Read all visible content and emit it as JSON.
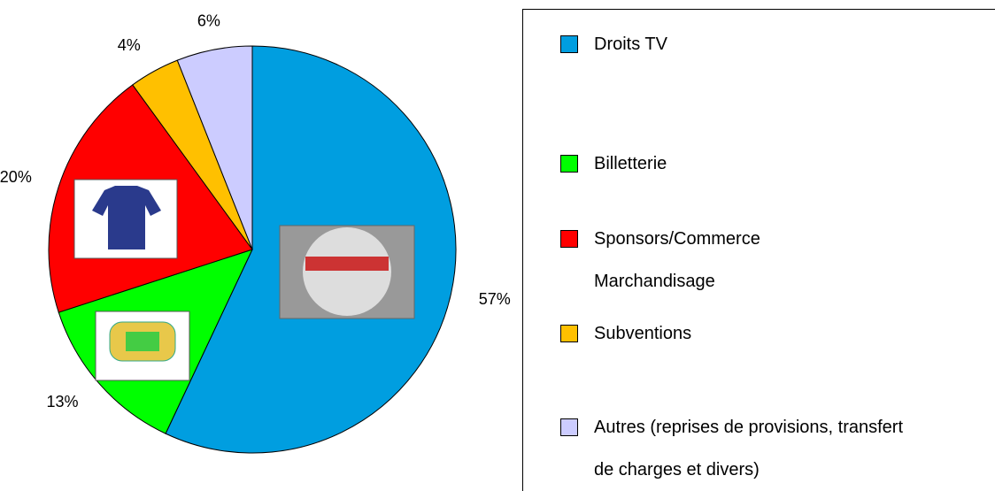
{
  "chart_data": {
    "type": "pie",
    "categories": [
      "Droits TV",
      "Billetterie",
      "Sponsors/Commerce\nMarchandisage",
      "Subventions",
      "Autres (reprises de provisions, transfert\nde charges et divers)"
    ],
    "values": [
      57,
      13,
      20,
      4,
      6
    ],
    "value_labels": [
      "57%",
      "13%",
      "20%",
      "4%",
      "6%"
    ],
    "colors": [
      "#009ee0",
      "#00ff00",
      "#ff0000",
      "#ffc000",
      "#ccccff"
    ],
    "direction": "clockwise",
    "legend": "right"
  }
}
